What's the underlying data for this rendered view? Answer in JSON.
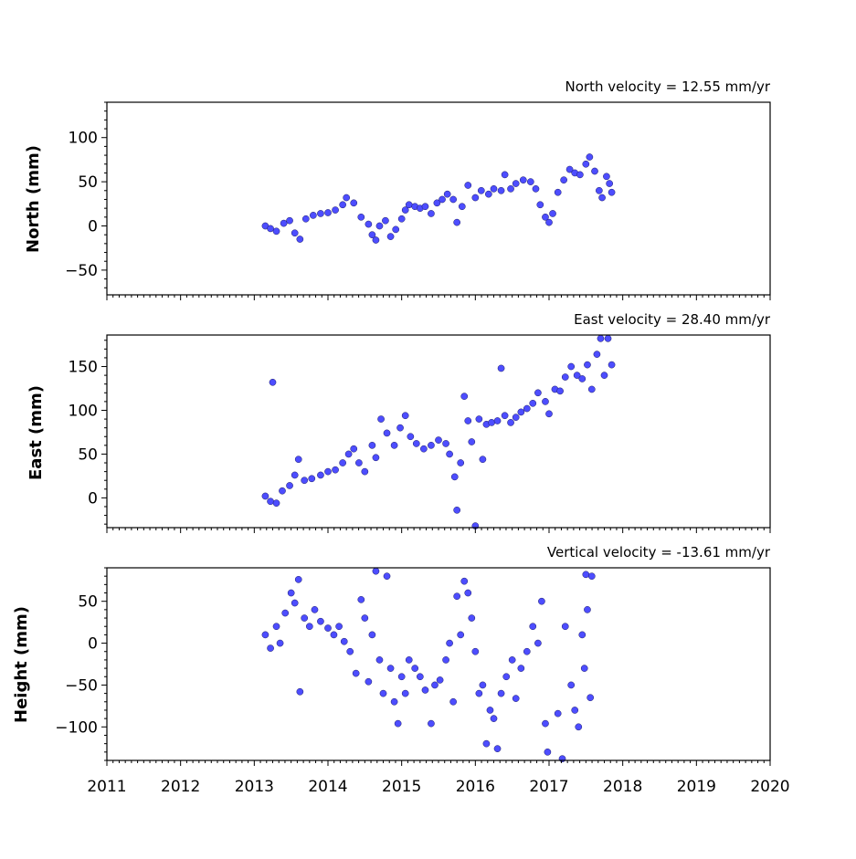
{
  "chart_data": [
    {
      "type": "scatter",
      "annotation": "North velocity = 12.55 mm/yr",
      "ylabel": "North (mm)",
      "xlim": [
        2011,
        2020
      ],
      "ylim": [
        -78,
        140
      ],
      "yticks": [
        100,
        50,
        0,
        -50
      ],
      "yticklabels": [
        "100",
        "50",
        "0",
        "−50"
      ],
      "xtick_labels_shown": false,
      "marker_color": "#4d4dff",
      "series": [
        {
          "points": [
            [
              2013.15,
              0
            ],
            [
              2013.22,
              -3
            ],
            [
              2013.3,
              -6
            ],
            [
              2013.4,
              3
            ],
            [
              2013.48,
              6
            ],
            [
              2013.55,
              -8
            ],
            [
              2013.62,
              -15
            ],
            [
              2013.7,
              8
            ],
            [
              2013.8,
              12
            ],
            [
              2013.9,
              14
            ],
            [
              2014.0,
              15
            ],
            [
              2014.1,
              18
            ],
            [
              2014.2,
              24
            ],
            [
              2014.25,
              32
            ],
            [
              2014.35,
              26
            ],
            [
              2014.45,
              10
            ],
            [
              2014.55,
              2
            ],
            [
              2014.6,
              -10
            ],
            [
              2014.65,
              -16
            ],
            [
              2014.7,
              0
            ],
            [
              2014.78,
              6
            ],
            [
              2014.85,
              -12
            ],
            [
              2014.92,
              -4
            ],
            [
              2015.0,
              8
            ],
            [
              2015.05,
              18
            ],
            [
              2015.1,
              24
            ],
            [
              2015.18,
              22
            ],
            [
              2015.25,
              20
            ],
            [
              2015.32,
              22
            ],
            [
              2015.4,
              14
            ],
            [
              2015.48,
              26
            ],
            [
              2015.55,
              30
            ],
            [
              2015.62,
              36
            ],
            [
              2015.7,
              30
            ],
            [
              2015.75,
              4
            ],
            [
              2015.82,
              22
            ],
            [
              2015.9,
              46
            ],
            [
              2016.0,
              32
            ],
            [
              2016.08,
              40
            ],
            [
              2016.18,
              36
            ],
            [
              2016.25,
              42
            ],
            [
              2016.35,
              40
            ],
            [
              2016.4,
              58
            ],
            [
              2016.48,
              42
            ],
            [
              2016.55,
              48
            ],
            [
              2016.65,
              52
            ],
            [
              2016.75,
              50
            ],
            [
              2016.82,
              42
            ],
            [
              2016.88,
              24
            ],
            [
              2016.95,
              10
            ],
            [
              2017.0,
              4
            ],
            [
              2017.05,
              14
            ],
            [
              2017.12,
              38
            ],
            [
              2017.2,
              52
            ],
            [
              2017.28,
              64
            ],
            [
              2017.35,
              60
            ],
            [
              2017.42,
              58
            ],
            [
              2017.5,
              70
            ],
            [
              2017.55,
              78
            ],
            [
              2017.62,
              62
            ],
            [
              2017.68,
              40
            ],
            [
              2017.72,
              32
            ],
            [
              2017.78,
              56
            ],
            [
              2017.82,
              48
            ],
            [
              2017.85,
              38
            ]
          ]
        }
      ]
    },
    {
      "type": "scatter",
      "annotation": "East velocity = 28.40 mm/yr",
      "ylabel": "East (mm)",
      "xlim": [
        2011,
        2020
      ],
      "ylim": [
        -34,
        186
      ],
      "yticks": [
        150,
        100,
        50,
        0
      ],
      "yticklabels": [
        "150",
        "100",
        "50",
        "0"
      ],
      "xtick_labels_shown": false,
      "marker_color": "#4d4dff",
      "series": [
        {
          "points": [
            [
              2013.15,
              2
            ],
            [
              2013.22,
              -4
            ],
            [
              2013.25,
              132
            ],
            [
              2013.3,
              -6
            ],
            [
              2013.38,
              8
            ],
            [
              2013.48,
              14
            ],
            [
              2013.55,
              26
            ],
            [
              2013.6,
              44
            ],
            [
              2013.68,
              20
            ],
            [
              2013.78,
              22
            ],
            [
              2013.9,
              26
            ],
            [
              2014.0,
              30
            ],
            [
              2014.1,
              32
            ],
            [
              2014.2,
              40
            ],
            [
              2014.28,
              50
            ],
            [
              2014.35,
              56
            ],
            [
              2014.42,
              40
            ],
            [
              2014.5,
              30
            ],
            [
              2014.6,
              60
            ],
            [
              2014.65,
              46
            ],
            [
              2014.72,
              90
            ],
            [
              2014.8,
              74
            ],
            [
              2014.9,
              60
            ],
            [
              2014.98,
              80
            ],
            [
              2015.05,
              94
            ],
            [
              2015.12,
              70
            ],
            [
              2015.2,
              62
            ],
            [
              2015.3,
              56
            ],
            [
              2015.4,
              60
            ],
            [
              2015.5,
              66
            ],
            [
              2015.6,
              62
            ],
            [
              2015.65,
              50
            ],
            [
              2015.72,
              24
            ],
            [
              2015.75,
              -14
            ],
            [
              2015.8,
              40
            ],
            [
              2015.85,
              116
            ],
            [
              2015.9,
              88
            ],
            [
              2015.95,
              64
            ],
            [
              2016.0,
              -32
            ],
            [
              2016.05,
              90
            ],
            [
              2016.1,
              44
            ],
            [
              2016.15,
              84
            ],
            [
              2016.22,
              86
            ],
            [
              2016.3,
              88
            ],
            [
              2016.35,
              148
            ],
            [
              2016.4,
              94
            ],
            [
              2016.48,
              86
            ],
            [
              2016.55,
              92
            ],
            [
              2016.62,
              98
            ],
            [
              2016.7,
              102
            ],
            [
              2016.78,
              108
            ],
            [
              2016.85,
              120
            ],
            [
              2016.95,
              110
            ],
            [
              2017.0,
              96
            ],
            [
              2017.08,
              124
            ],
            [
              2017.15,
              122
            ],
            [
              2017.22,
              138
            ],
            [
              2017.3,
              150
            ],
            [
              2017.38,
              140
            ],
            [
              2017.45,
              136
            ],
            [
              2017.52,
              152
            ],
            [
              2017.58,
              124
            ],
            [
              2017.65,
              164
            ],
            [
              2017.7,
              182
            ],
            [
              2017.75,
              140
            ],
            [
              2017.8,
              182
            ],
            [
              2017.85,
              152
            ]
          ]
        }
      ]
    },
    {
      "type": "scatter",
      "annotation": "Vertical velocity = -13.61 mm/yr",
      "ylabel": "Height (mm)",
      "xlim": [
        2011,
        2020
      ],
      "ylim": [
        -140,
        90
      ],
      "yticks": [
        50,
        0,
        -50,
        -100
      ],
      "yticklabels": [
        "50",
        "0",
        "−50",
        "−100"
      ],
      "xticks": [
        2011,
        2012,
        2013,
        2014,
        2015,
        2016,
        2017,
        2018,
        2019,
        2020
      ],
      "xticklabels": [
        "2011",
        "2012",
        "2013",
        "2014",
        "2015",
        "2016",
        "2017",
        "2018",
        "2019",
        "2020"
      ],
      "marker_color": "#4d4dff",
      "series": [
        {
          "points": [
            [
              2013.15,
              10
            ],
            [
              2013.22,
              -6
            ],
            [
              2013.3,
              20
            ],
            [
              2013.35,
              0
            ],
            [
              2013.42,
              36
            ],
            [
              2013.5,
              60
            ],
            [
              2013.55,
              48
            ],
            [
              2013.6,
              76
            ],
            [
              2013.62,
              -58
            ],
            [
              2013.68,
              30
            ],
            [
              2013.75,
              20
            ],
            [
              2013.82,
              40
            ],
            [
              2013.9,
              26
            ],
            [
              2014.0,
              18
            ],
            [
              2014.08,
              10
            ],
            [
              2014.15,
              20
            ],
            [
              2014.22,
              2
            ],
            [
              2014.3,
              -10
            ],
            [
              2014.38,
              -36
            ],
            [
              2014.45,
              52
            ],
            [
              2014.5,
              30
            ],
            [
              2014.55,
              -46
            ],
            [
              2014.6,
              10
            ],
            [
              2014.65,
              86
            ],
            [
              2014.7,
              -20
            ],
            [
              2014.75,
              -60
            ],
            [
              2014.8,
              80
            ],
            [
              2014.85,
              -30
            ],
            [
              2014.9,
              -70
            ],
            [
              2014.95,
              -96
            ],
            [
              2015.0,
              -40
            ],
            [
              2015.05,
              -60
            ],
            [
              2015.1,
              -20
            ],
            [
              2015.18,
              -30
            ],
            [
              2015.25,
              -40
            ],
            [
              2015.32,
              -56
            ],
            [
              2015.4,
              -96
            ],
            [
              2015.45,
              -50
            ],
            [
              2015.52,
              -44
            ],
            [
              2015.6,
              -20
            ],
            [
              2015.65,
              0
            ],
            [
              2015.7,
              -70
            ],
            [
              2015.75,
              56
            ],
            [
              2015.8,
              10
            ],
            [
              2015.85,
              74
            ],
            [
              2015.9,
              60
            ],
            [
              2015.95,
              30
            ],
            [
              2016.0,
              -10
            ],
            [
              2016.05,
              -60
            ],
            [
              2016.1,
              -50
            ],
            [
              2016.15,
              -120
            ],
            [
              2016.2,
              -80
            ],
            [
              2016.25,
              -90
            ],
            [
              2016.3,
              -126
            ],
            [
              2016.35,
              -60
            ],
            [
              2016.42,
              -40
            ],
            [
              2016.5,
              -20
            ],
            [
              2016.55,
              -66
            ],
            [
              2016.62,
              -30
            ],
            [
              2016.7,
              -10
            ],
            [
              2016.78,
              20
            ],
            [
              2016.85,
              0
            ],
            [
              2016.9,
              50
            ],
            [
              2016.95,
              -96
            ],
            [
              2016.98,
              -130
            ],
            [
              2017.12,
              -84
            ],
            [
              2017.18,
              -138
            ],
            [
              2017.22,
              20
            ],
            [
              2017.3,
              -50
            ],
            [
              2017.35,
              -80
            ],
            [
              2017.4,
              -100
            ],
            [
              2017.45,
              10
            ],
            [
              2017.48,
              -30
            ],
            [
              2017.5,
              82
            ],
            [
              2017.52,
              40
            ],
            [
              2017.56,
              -65
            ],
            [
              2017.58,
              80
            ]
          ]
        }
      ]
    }
  ]
}
